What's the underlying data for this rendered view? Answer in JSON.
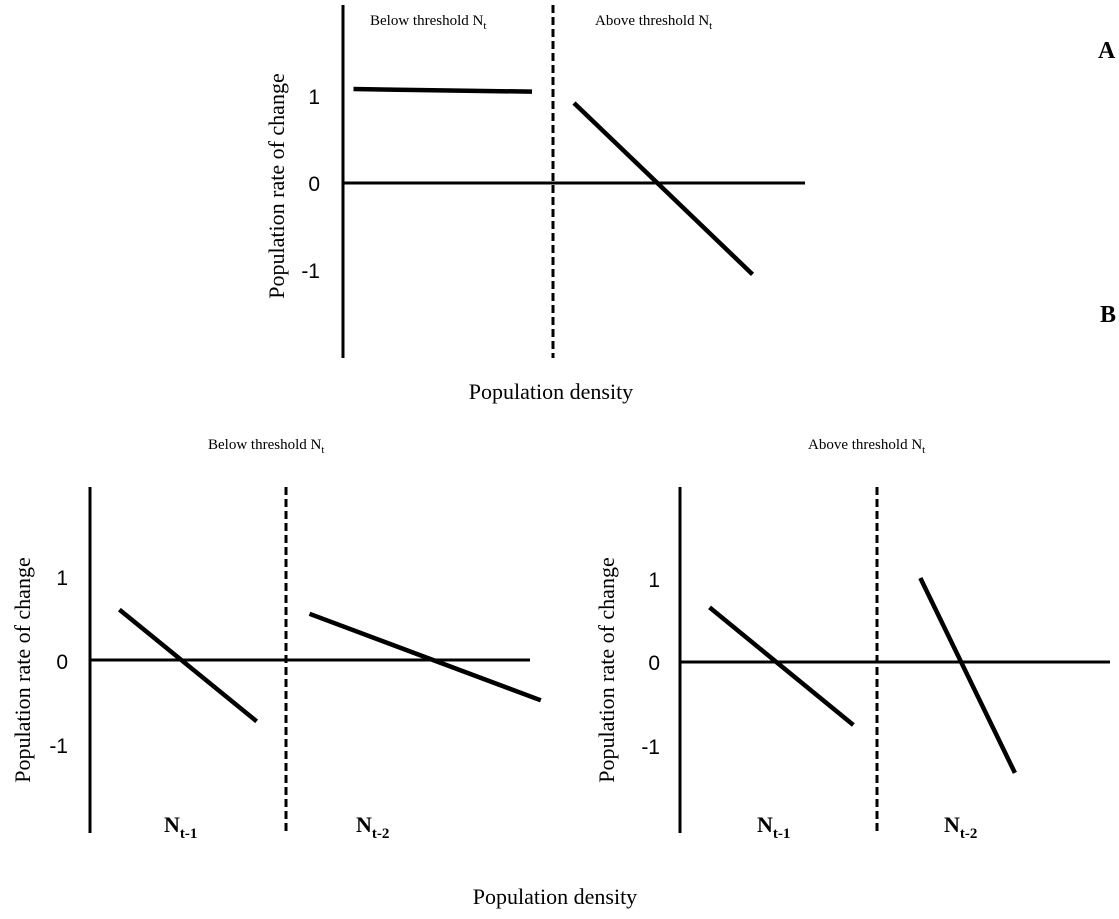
{
  "figure": {
    "label_a": "A",
    "label_b": "B",
    "population_density": "Population density",
    "ylabel": "Population rate of change",
    "below_threshold": "Below threshold N",
    "above_threshold": "Above threshold N",
    "threshold_subscript": "t",
    "n_symbol": "N",
    "lag1_subscript": "t-1",
    "lag2_subscript": "t-2",
    "ticks": [
      "1",
      "0",
      "-1"
    ]
  },
  "panels": {
    "A": {
      "segments": [
        {
          "from": [
            0.05,
            1.08
          ],
          "to": [
            0.9,
            1.05
          ]
        },
        {
          "from": [
            1.1,
            0.92
          ],
          "to": [
            1.95,
            -1.05
          ]
        }
      ]
    },
    "B_left": {
      "segments": [
        {
          "from": [
            0.15,
            0.6
          ],
          "to": [
            0.85,
            -0.73
          ]
        },
        {
          "from": [
            1.12,
            0.55
          ],
          "to": [
            2.3,
            -0.48
          ]
        }
      ]
    },
    "B_right": {
      "segments": [
        {
          "from": [
            0.15,
            0.65
          ],
          "to": [
            0.88,
            -0.75
          ]
        },
        {
          "from": [
            1.22,
            1.0
          ],
          "to": [
            1.7,
            -1.32
          ]
        }
      ]
    }
  }
}
